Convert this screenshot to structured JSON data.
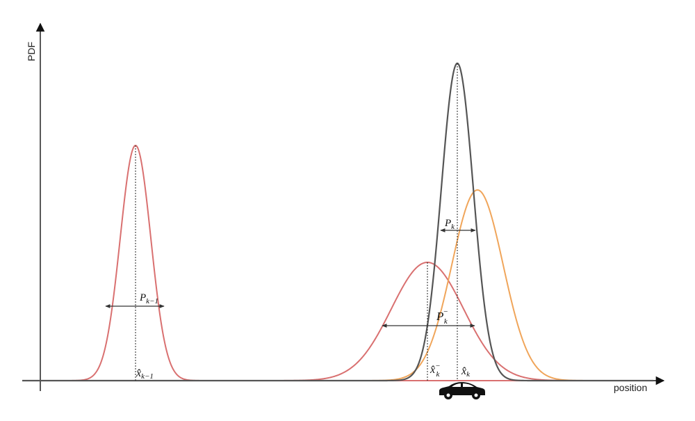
{
  "axes": {
    "y_label": "PDF",
    "x_label": "position"
  },
  "curves": [
    {
      "id": "prior-estimate",
      "color": "#d97070",
      "mean": 195,
      "sigma": 22,
      "peak_height": 338
    },
    {
      "id": "predicted-estimate",
      "color": "#d97070",
      "mean": 615,
      "sigma": 52,
      "peak_height": 170
    },
    {
      "id": "measurement",
      "color": "#f0a55a",
      "mean": 687,
      "sigma": 37,
      "peak_height": 274
    },
    {
      "id": "updated-estimate",
      "color": "#555555",
      "mean": 658,
      "sigma": 23,
      "peak_height": 456
    }
  ],
  "labels": {
    "p_k_minus_1": {
      "base": "P",
      "sub": "k−1"
    },
    "p_k_prior": {
      "base": "P",
      "sub": "k",
      "sup": "−"
    },
    "p_k": {
      "base": "P",
      "sub": "k"
    },
    "x_hat_k_minus_1": {
      "base": "x̂",
      "sub": "k−1"
    },
    "x_hat_k_prior": {
      "base": "x̂",
      "sub": "k",
      "sup": "−"
    },
    "x_hat_k": {
      "base": "x̂",
      "sub": "k"
    }
  },
  "icons": {
    "vehicle": "car-icon"
  }
}
